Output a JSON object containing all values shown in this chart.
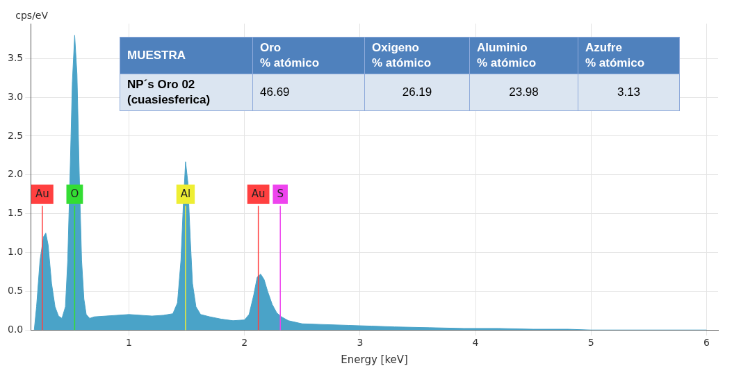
{
  "chart_data": {
    "type": "area",
    "xlabel": "Energy [keV]",
    "ylabel": "cps/eV",
    "x": [
      0.18,
      0.2,
      0.23,
      0.26,
      0.28,
      0.3,
      0.33,
      0.36,
      0.39,
      0.42,
      0.45,
      0.47,
      0.49,
      0.51,
      0.53,
      0.55,
      0.57,
      0.59,
      0.61,
      0.63,
      0.66,
      0.7,
      0.8,
      0.9,
      1.0,
      1.1,
      1.2,
      1.3,
      1.38,
      1.42,
      1.45,
      1.47,
      1.49,
      1.51,
      1.53,
      1.55,
      1.58,
      1.62,
      1.7,
      1.8,
      1.9,
      2.0,
      2.04,
      2.08,
      2.11,
      2.14,
      2.17,
      2.2,
      2.24,
      2.28,
      2.32,
      2.38,
      2.5,
      2.7,
      2.9,
      3.1,
      3.3,
      3.6,
      3.9,
      4.2,
      4.5,
      4.8,
      5.0,
      6.0
    ],
    "series": [
      {
        "color": "#4aa3c8",
        "values": [
          0.0,
          0.3,
          0.9,
          1.2,
          1.25,
          1.1,
          0.6,
          0.3,
          0.18,
          0.15,
          0.3,
          0.9,
          2.0,
          3.2,
          3.8,
          3.3,
          2.0,
          0.9,
          0.4,
          0.2,
          0.15,
          0.17,
          0.18,
          0.19,
          0.2,
          0.19,
          0.18,
          0.19,
          0.21,
          0.35,
          0.9,
          1.6,
          2.17,
          1.9,
          1.2,
          0.6,
          0.3,
          0.2,
          0.17,
          0.14,
          0.12,
          0.13,
          0.2,
          0.45,
          0.68,
          0.72,
          0.65,
          0.5,
          0.33,
          0.22,
          0.17,
          0.12,
          0.08,
          0.07,
          0.06,
          0.05,
          0.04,
          0.03,
          0.02,
          0.02,
          0.01,
          0.01,
          0,
          0
        ]
      }
    ],
    "xlim": [
      0.15,
      6.1
    ],
    "xticks": [
      1,
      2,
      3,
      4,
      5,
      6
    ],
    "ylim": [
      0,
      3.95
    ],
    "yticks": [
      {
        "value": 0,
        "label": "0.0"
      },
      {
        "value": 0.5,
        "label": "0.5"
      },
      {
        "value": 1,
        "label": "1.0"
      },
      {
        "value": 1.5,
        "label": "1.5"
      },
      {
        "value": 2,
        "label": "2.0"
      },
      {
        "value": 2.5,
        "label": "2.5"
      },
      {
        "value": 3,
        "label": "3.0"
      },
      {
        "value": 3.5,
        "label": "3.5"
      }
    ],
    "grid": true,
    "ref_lines": [
      {
        "axis": "x",
        "value": 0.25,
        "label": "Au",
        "color": "#ff4040"
      },
      {
        "axis": "x",
        "value": 0.53,
        "label": "O",
        "color": "#33dd33"
      },
      {
        "axis": "x",
        "value": 1.49,
        "label": "Al",
        "color": "#eeee33"
      },
      {
        "axis": "x",
        "value": 2.12,
        "label": "Au",
        "color": "#ff4040"
      },
      {
        "axis": "x",
        "value": 2.31,
        "label": "S",
        "color": "#ee44ee"
      }
    ],
    "annotations": [
      "MUESTRA",
      "Oro\n% atómico",
      "Oxigeno\n% atómico",
      "Aluminio\n% atómico",
      "Azufre\n% atómico",
      "NP´s Oro 02\n(cuasiesferica)",
      "46.69",
      "26.19",
      "23.98",
      "3.13"
    ]
  }
}
